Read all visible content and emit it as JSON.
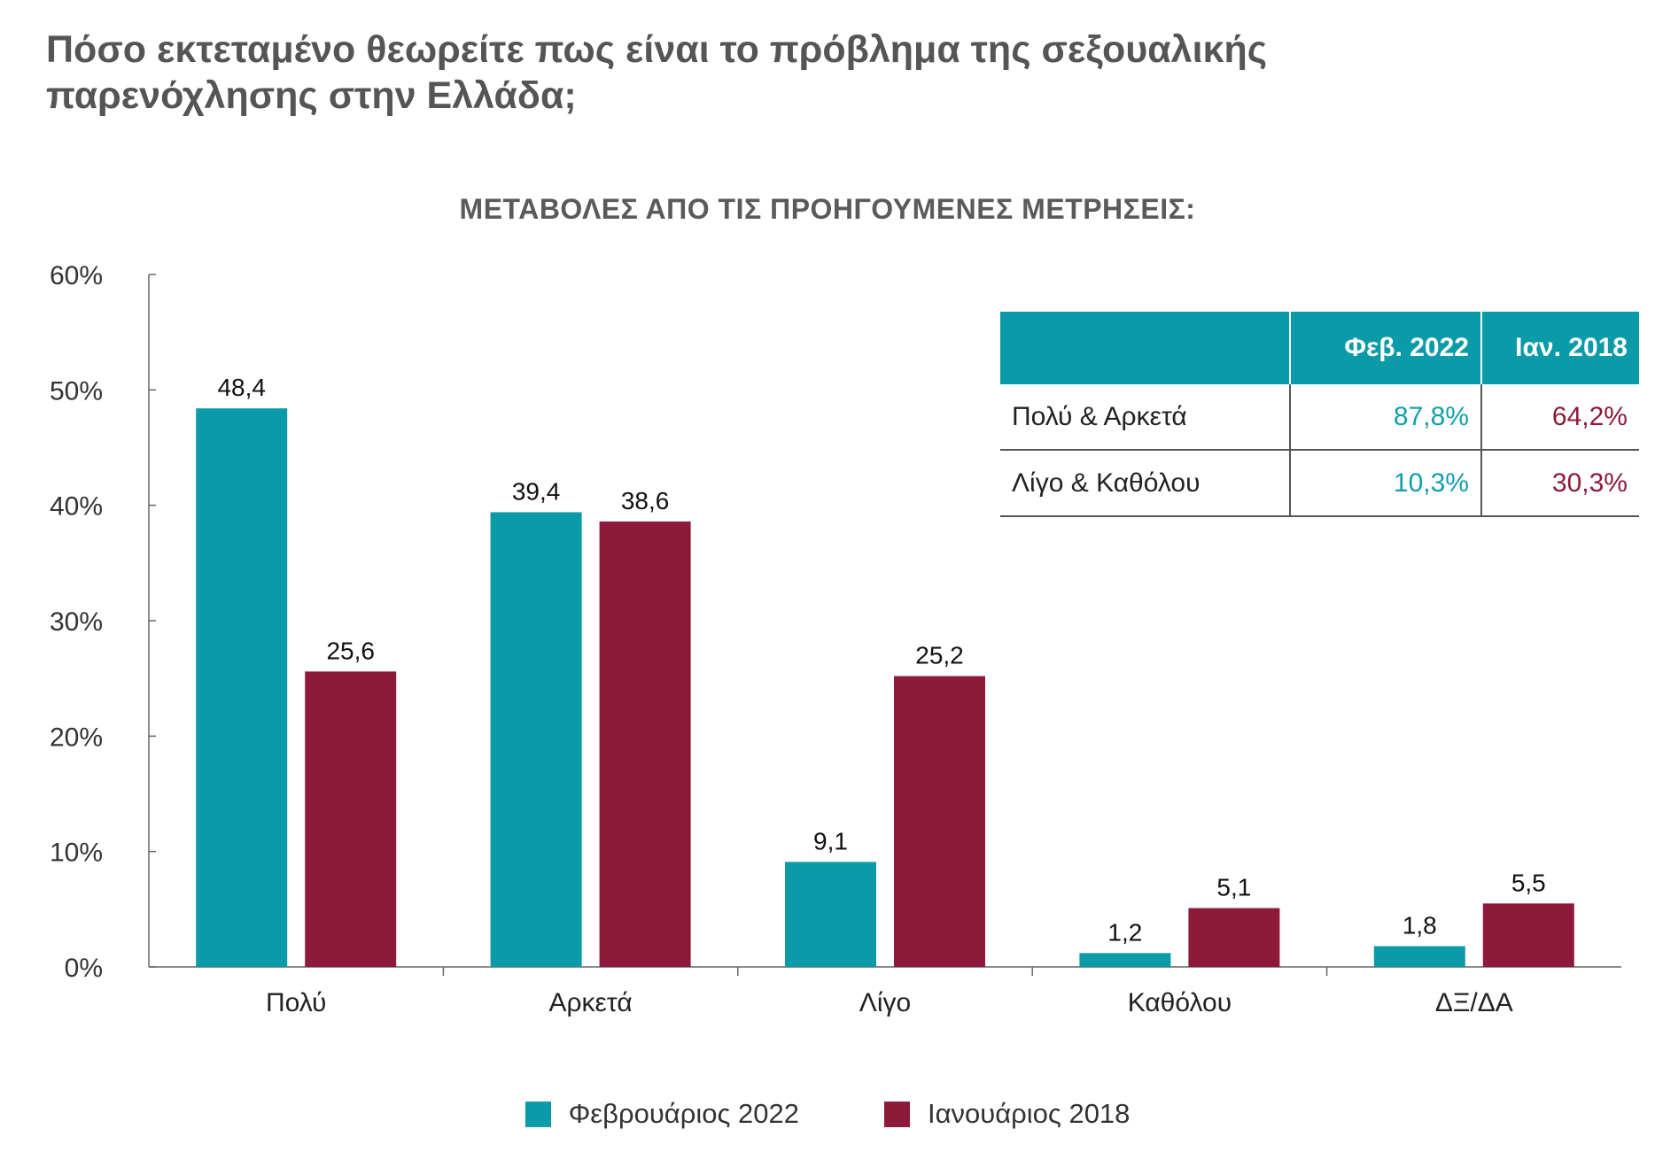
{
  "title": "Πόσο εκτεταμένο θεωρείτε πως είναι το πρόβλημα της σεξουαλικής παρενόχλησης στην Ελλάδα;",
  "chart_data": {
    "type": "bar",
    "subtitle": "ΜΕΤΑΒΟΛΕΣ ΑΠΟ ΤΙΣ ΠΡΟΗΓΟΥΜΕΝΕΣ ΜΕΤΡΗΣΕΙΣ:",
    "categories": [
      "Πολύ",
      "Αρκετά",
      "Λίγο",
      "Καθόλου",
      "ΔΞ/ΔΑ"
    ],
    "series": [
      {
        "name": "Φεβρουάριος 2022",
        "color": "#0a9aa8",
        "values": [
          48.4,
          39.4,
          9.1,
          1.2,
          1.8
        ],
        "labels": [
          "48,4",
          "39,4",
          "9,1",
          "1,2",
          "1,8"
        ]
      },
      {
        "name": "Ιανουάριος 2018",
        "color": "#8d1a3a",
        "values": [
          25.6,
          38.6,
          25.2,
          5.1,
          5.5
        ],
        "labels": [
          "25,6",
          "38,6",
          "25,2",
          "5,1",
          "5,5"
        ]
      }
    ],
    "ylim": [
      0,
      60
    ],
    "yticks": [
      "0%",
      "10%",
      "20%",
      "30%",
      "40%",
      "50%",
      "60%"
    ],
    "grid": false,
    "legend_position": "bottom"
  },
  "summary_table": {
    "headers": [
      "",
      "Φεβ. 2022",
      "Ιαν. 2018"
    ],
    "rows": [
      {
        "label": "Πολύ & Αρκετά",
        "v2022": "87,8%",
        "v2018": "64,2%"
      },
      {
        "label": "Λίγο & Καθόλου",
        "v2022": "10,3%",
        "v2018": "30,3%"
      }
    ]
  }
}
